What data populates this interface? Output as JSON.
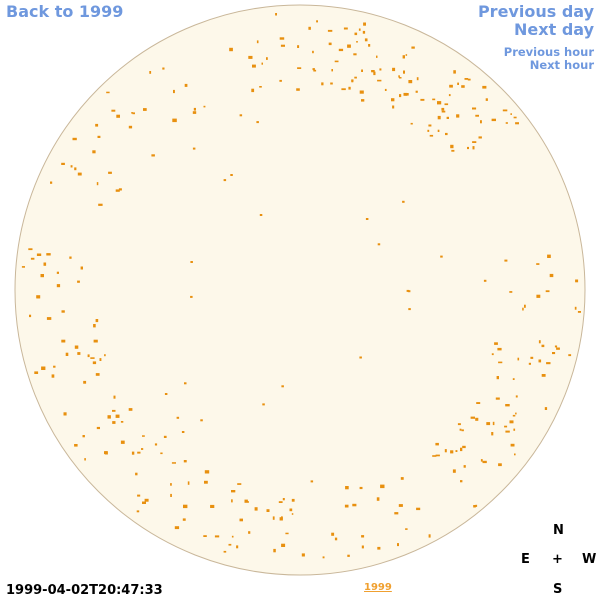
{
  "nav": {
    "back_label": "Back to 1999",
    "prev_day_label": "Previous day",
    "next_day_label": "Next day",
    "prev_hour_label": "Previous hour",
    "next_hour_label": "Next hour"
  },
  "footer": {
    "timestamp": "1999-04-02T20:47:33",
    "year_link": "1999"
  },
  "compass": {
    "north": "N",
    "east": "E",
    "center": "+",
    "west": "W",
    "south": "S"
  },
  "colors": {
    "link": "#6f98de",
    "disk_fill": "#fdf8ea",
    "disk_edge": "#c9b79a",
    "feature": "#e8900f",
    "year_link": "#f0a030"
  }
}
